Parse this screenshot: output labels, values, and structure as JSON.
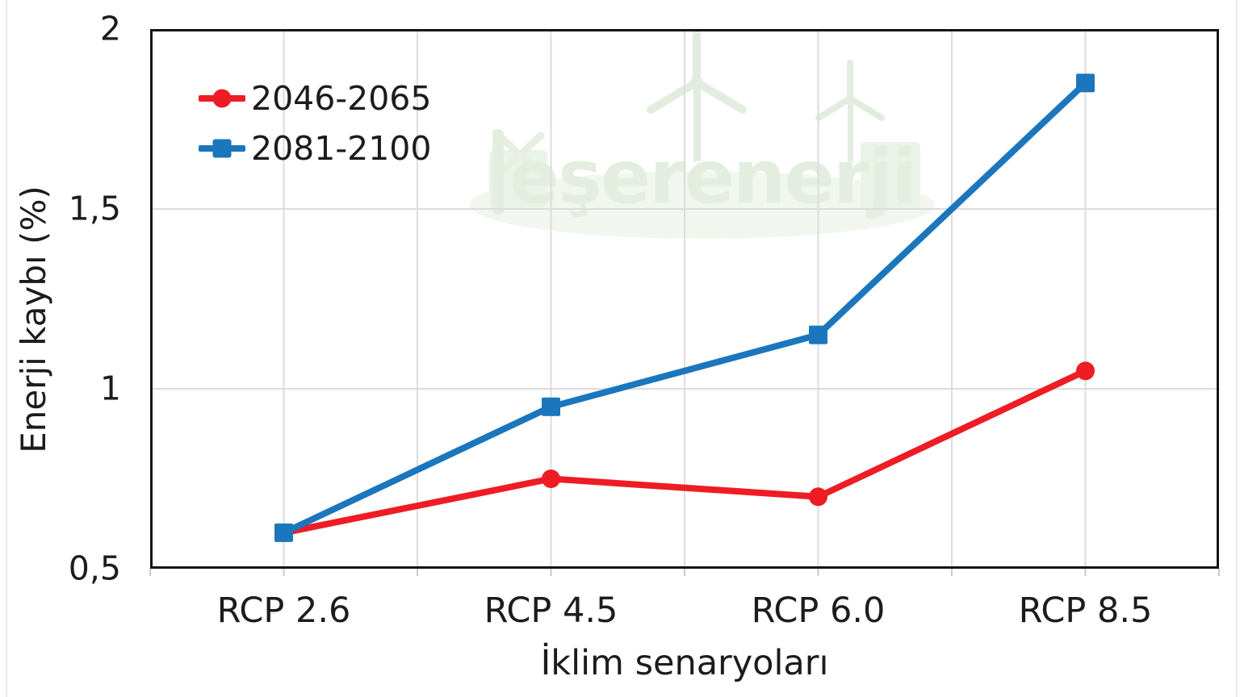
{
  "watermark": {
    "text": "eşerenerji",
    "color": "#e4eee0"
  },
  "chart_data": {
    "type": "line",
    "title": "",
    "xlabel": "İklim senaryoları",
    "ylabel": "Enerji kaybı (%)",
    "categories": [
      "RCP 2.6",
      "RCP 4.5",
      "RCP 6.0",
      "RCP 8.5"
    ],
    "series": [
      {
        "name": "2046-2065",
        "color": "#ee1c24",
        "marker": "circle",
        "values": [
          0.6,
          0.75,
          0.7,
          1.05
        ]
      },
      {
        "name": "2081-2100",
        "color": "#1b76bd",
        "marker": "square",
        "values": [
          0.6,
          0.95,
          1.15,
          1.85
        ]
      }
    ],
    "ylim": [
      0.5,
      2
    ],
    "yticks": [
      {
        "value": 0.5,
        "label": "0,5"
      },
      {
        "value": 1,
        "label": "1"
      },
      {
        "value": 1.5,
        "label": "1,5"
      },
      {
        "value": 2,
        "label": "2"
      }
    ],
    "grid": {
      "horizontal": true,
      "vertical": true,
      "color": "#dcdcdc",
      "tick_color": "#c9c9c9"
    },
    "axis_color": "#141414",
    "legend_position": "top-left-inside"
  }
}
